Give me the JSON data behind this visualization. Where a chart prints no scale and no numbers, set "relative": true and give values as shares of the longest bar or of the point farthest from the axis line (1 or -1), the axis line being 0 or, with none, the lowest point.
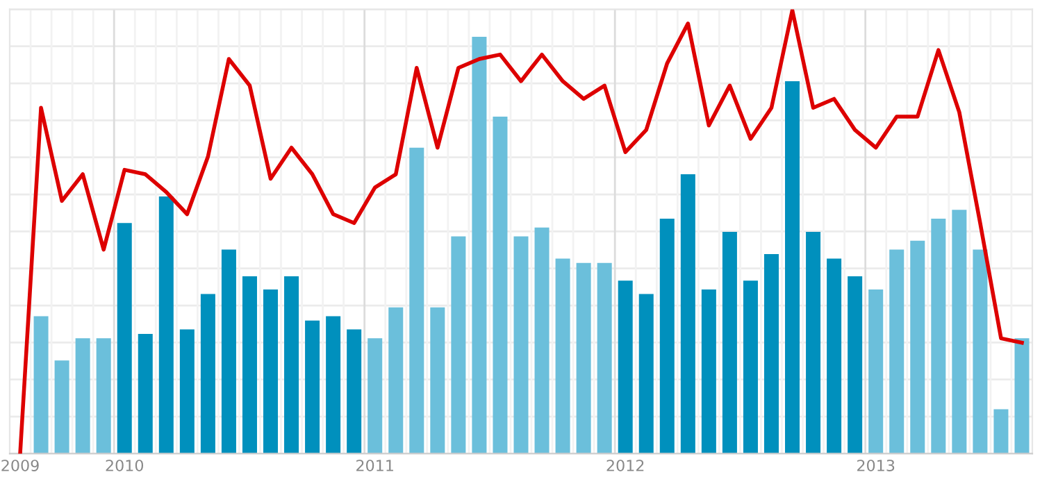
{
  "chart_data": {
    "type": "bar",
    "relative": true,
    "categories": [
      "2009",
      null,
      null,
      null,
      null,
      "2010",
      null,
      null,
      null,
      null,
      null,
      null,
      null,
      null,
      null,
      null,
      null,
      "2011",
      null,
      null,
      null,
      null,
      null,
      null,
      null,
      null,
      null,
      null,
      null,
      "2012",
      null,
      null,
      null,
      null,
      null,
      null,
      null,
      null,
      null,
      null,
      null,
      "2013",
      null,
      null,
      null,
      null,
      null,
      null,
      null
    ],
    "series": [
      {
        "colors": [
          "#6bbfdb",
          "#6bbfdb",
          "#6bbfdb",
          "#6bbfdb",
          "#6bbfdb",
          "#0090bd",
          "#0090bd",
          "#0090bd",
          "#0090bd",
          "#0090bd",
          "#0090bd",
          "#0090bd",
          "#0090bd",
          "#0090bd",
          "#0090bd",
          "#0090bd",
          "#0090bd",
          "#6bbfdb",
          "#6bbfdb",
          "#6bbfdb",
          "#6bbfdb",
          "#6bbfdb",
          "#6bbfdb",
          "#6bbfdb",
          "#6bbfdb",
          "#6bbfdb",
          "#6bbfdb",
          "#6bbfdb",
          "#6bbfdb",
          "#0090bd",
          "#0090bd",
          "#0090bd",
          "#0090bd",
          "#0090bd",
          "#0090bd",
          "#0090bd",
          "#0090bd",
          "#0090bd",
          "#0090bd",
          "#0090bd",
          "#0090bd",
          "#6bbfdb",
          "#6bbfdb",
          "#6bbfdb",
          "#6bbfdb",
          "#6bbfdb",
          "#6bbfdb",
          "#6bbfdb",
          "#6bbfdb"
        ],
        "values": [
          null,
          0.31,
          0.21,
          0.26,
          0.26,
          0.52,
          0.27,
          0.58,
          0.28,
          0.36,
          0.46,
          0.4,
          0.37,
          0.4,
          0.3,
          0.31,
          0.28,
          0.26,
          0.33,
          0.69,
          0.33,
          0.49,
          0.94,
          0.76,
          0.49,
          0.51,
          0.44,
          0.43,
          0.43,
          0.39,
          0.36,
          0.53,
          0.63,
          0.37,
          0.5,
          0.39,
          0.45,
          0.84,
          0.5,
          0.44,
          0.4,
          0.37,
          0.46,
          0.48,
          0.53,
          0.55,
          0.46,
          0.1,
          0.26
        ]
      },
      {
        "type": "line",
        "color": "#dd0000",
        "values": [
          0,
          0.78,
          0.57,
          0.63,
          0.46,
          0.64,
          0.63,
          0.59,
          0.54,
          0.67,
          0.89,
          0.83,
          0.62,
          0.69,
          0.63,
          0.54,
          0.52,
          0.6,
          0.63,
          0.87,
          0.69,
          0.87,
          0.89,
          0.9,
          0.84,
          0.9,
          0.84,
          0.8,
          0.83,
          0.68,
          0.73,
          0.88,
          0.97,
          0.74,
          0.83,
          0.71,
          0.78,
          1,
          0.78,
          0.8,
          0.73,
          0.69,
          0.76,
          0.76,
          0.91,
          0.77,
          0.52,
          0.26,
          0.25
        ]
      }
    ],
    "grid": true
  }
}
